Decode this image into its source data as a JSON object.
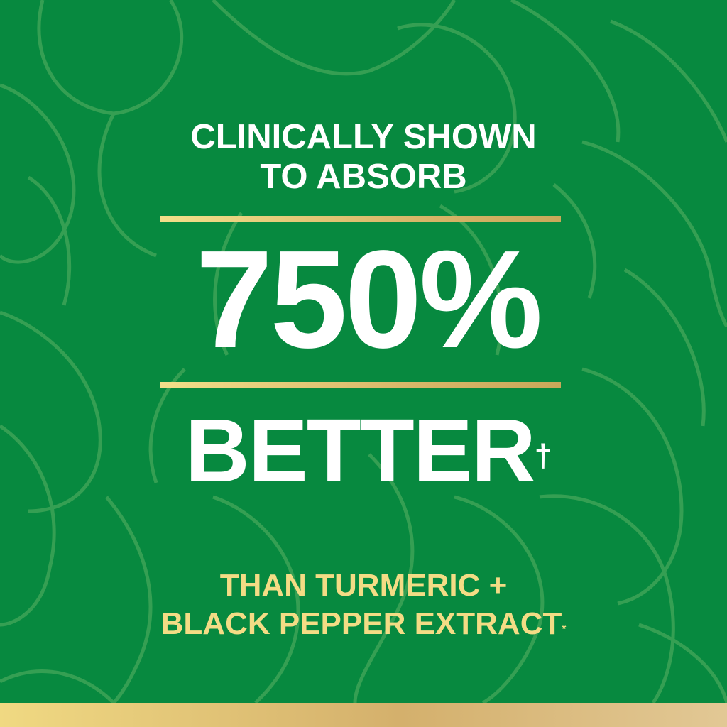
{
  "headline": {
    "line1": "CLINICALLY SHOWN",
    "line2": "TO ABSORB"
  },
  "stat": {
    "value": "750%",
    "word": "BETTER",
    "mark": "†"
  },
  "comparison": {
    "line1": "THAN TURMERIC +",
    "line2": "BLACK PEPPER EXTRACT",
    "mark": "*"
  },
  "colors": {
    "background": "#07893f",
    "pattern": "#3ea457",
    "white_text": "#ffffff",
    "gold_text": "#f3dc85",
    "gold_rule": "#e2c57a"
  },
  "background_pattern": "leaf-outline-pattern"
}
